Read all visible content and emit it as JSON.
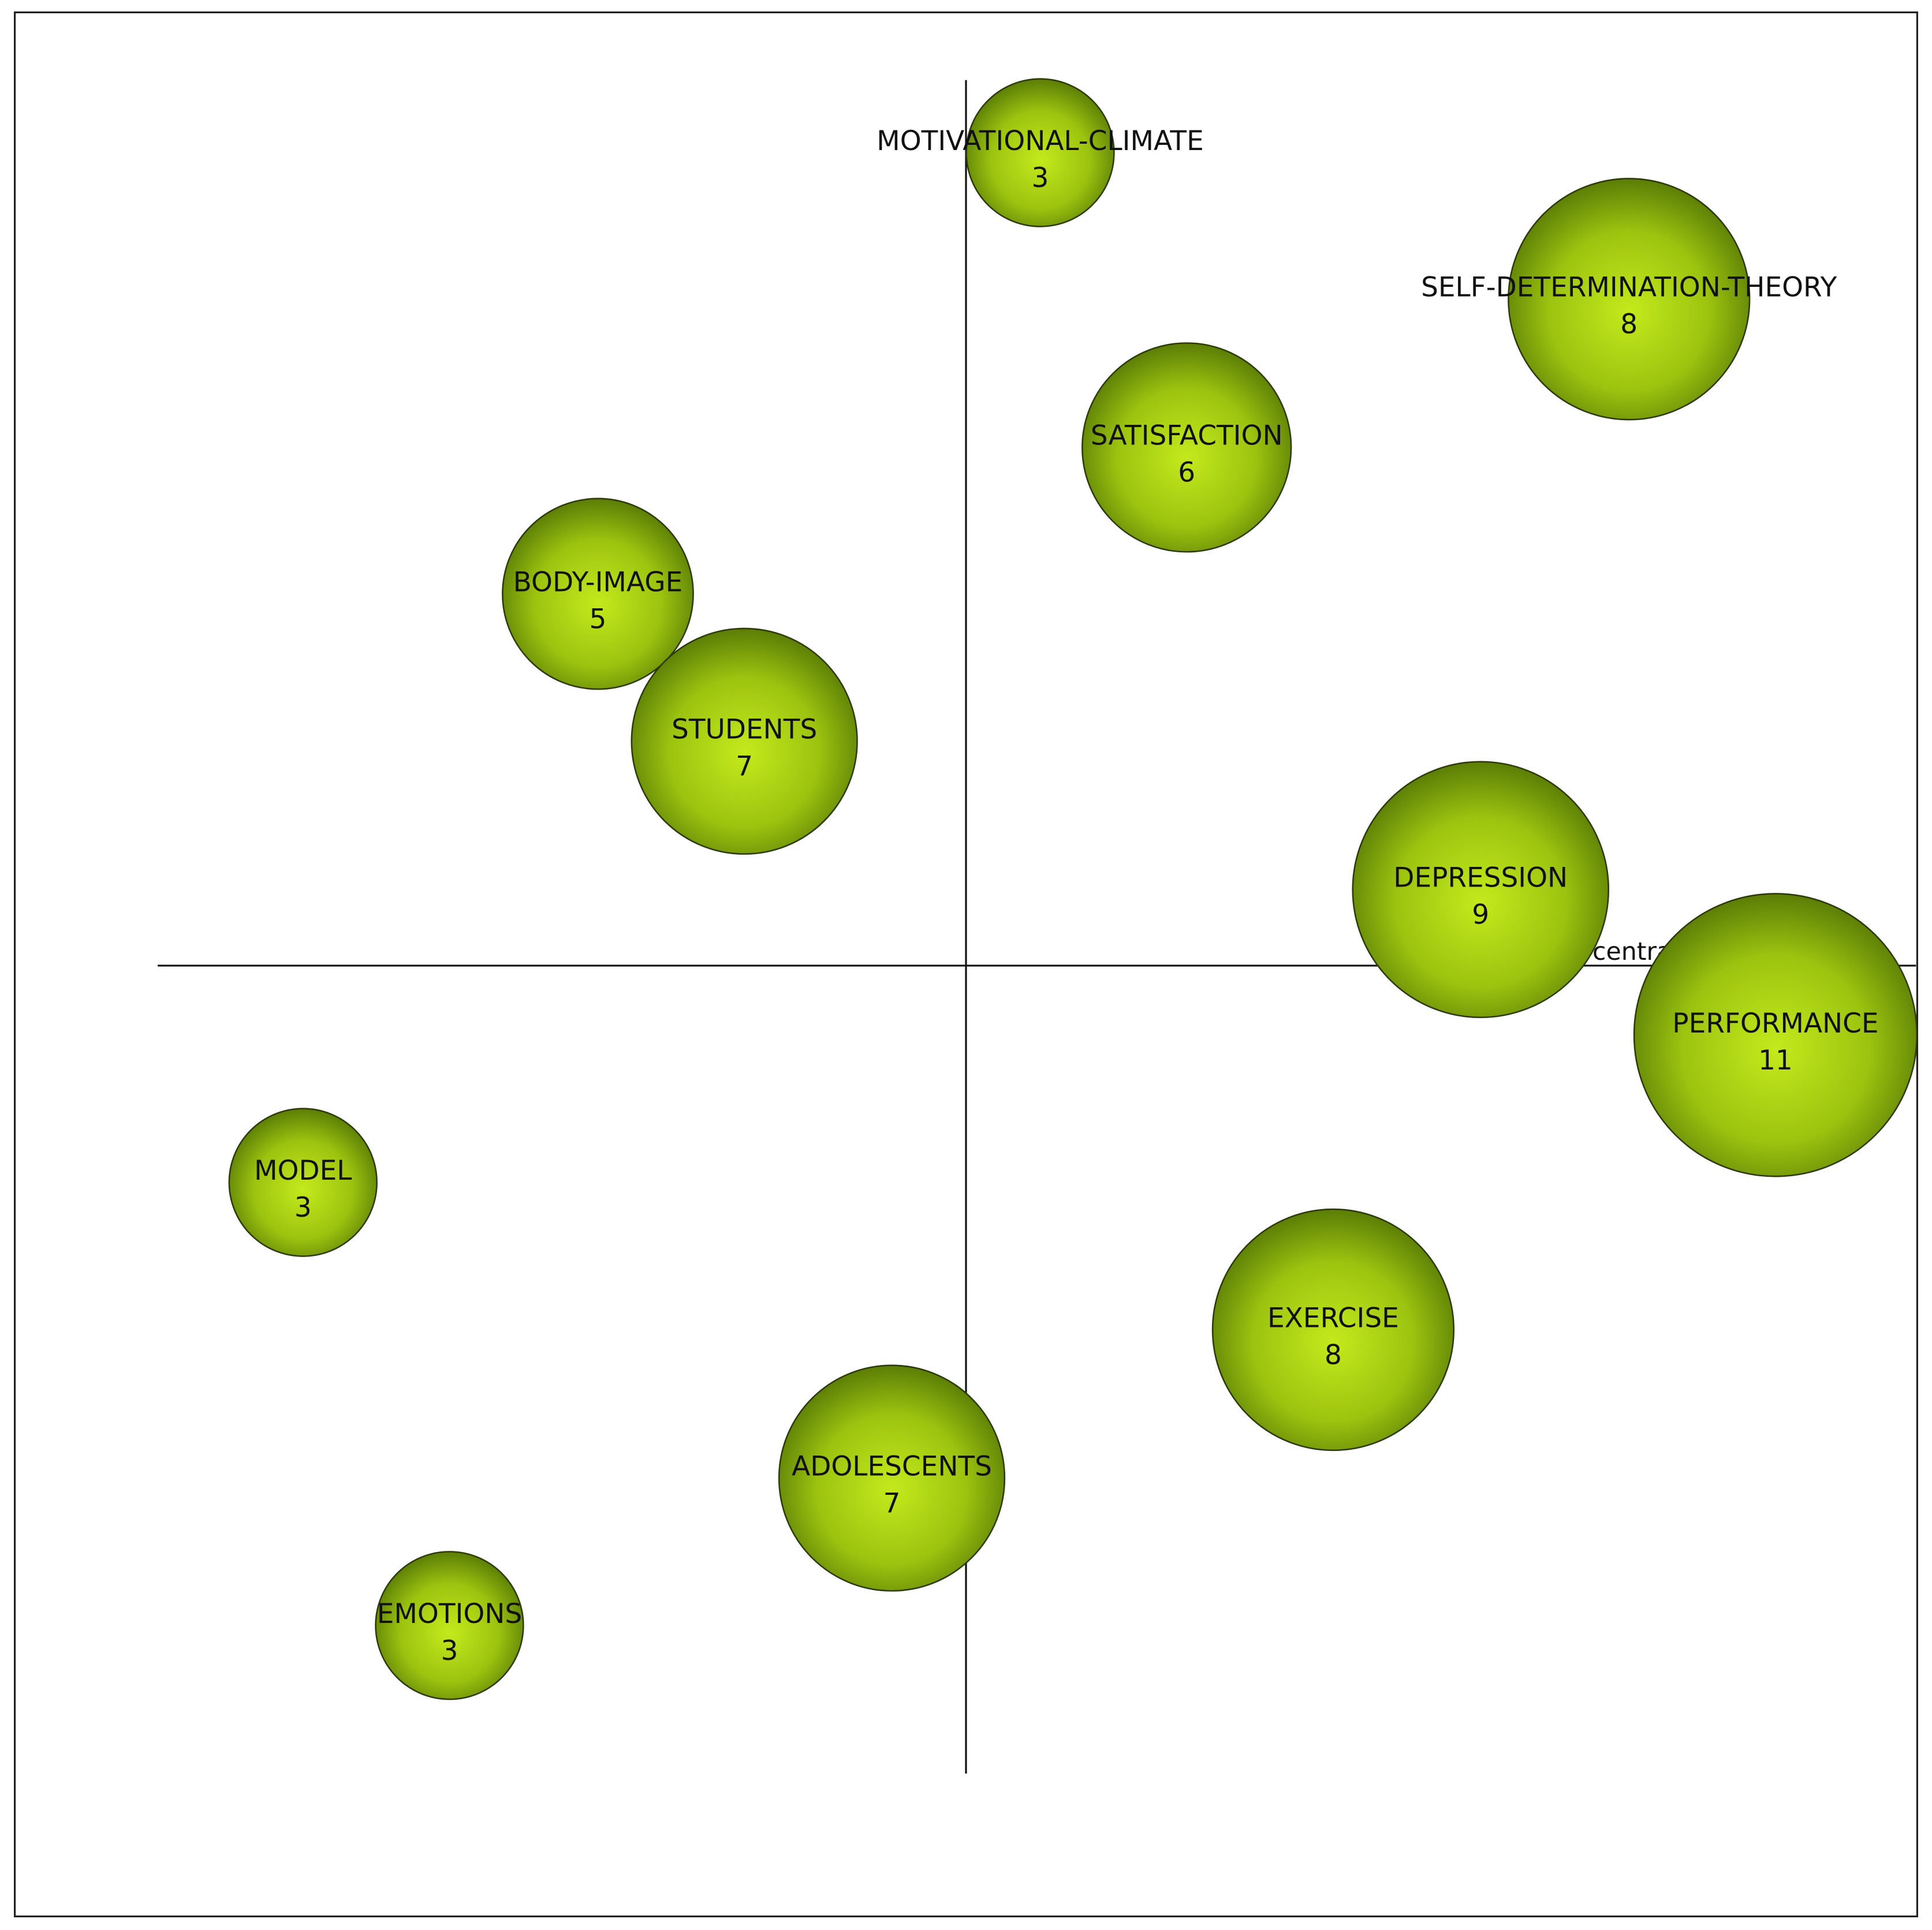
{
  "chart_data": {
    "type": "bubble",
    "x_label": "centrality",
    "xlim": [
      -1,
      1
    ],
    "ylim": [
      -1,
      1
    ],
    "color": "#9cc40f",
    "categories": [
      "MOTIVATIONAL-CLIMATE",
      "SELF-DETERMINATION-THEORY",
      "SATISFACTION",
      "BODY-IMAGE",
      "STUDENTS",
      "DEPRESSION",
      "PERFORMANCE",
      "MODEL",
      "EXERCISE",
      "ADOLESCENTS",
      "EMOTIONS"
    ],
    "x": [
      0.078,
      0.697,
      0.232,
      -0.387,
      -0.233,
      0.541,
      0.851,
      -0.697,
      0.386,
      -0.078,
      -0.543
    ],
    "y": [
      0.855,
      0.701,
      0.545,
      0.391,
      0.236,
      0.08,
      -0.073,
      -0.228,
      -0.383,
      -0.539,
      -0.694
    ],
    "values": [
      3,
      8,
      6,
      5,
      7,
      9,
      11,
      3,
      8,
      7,
      3
    ]
  }
}
